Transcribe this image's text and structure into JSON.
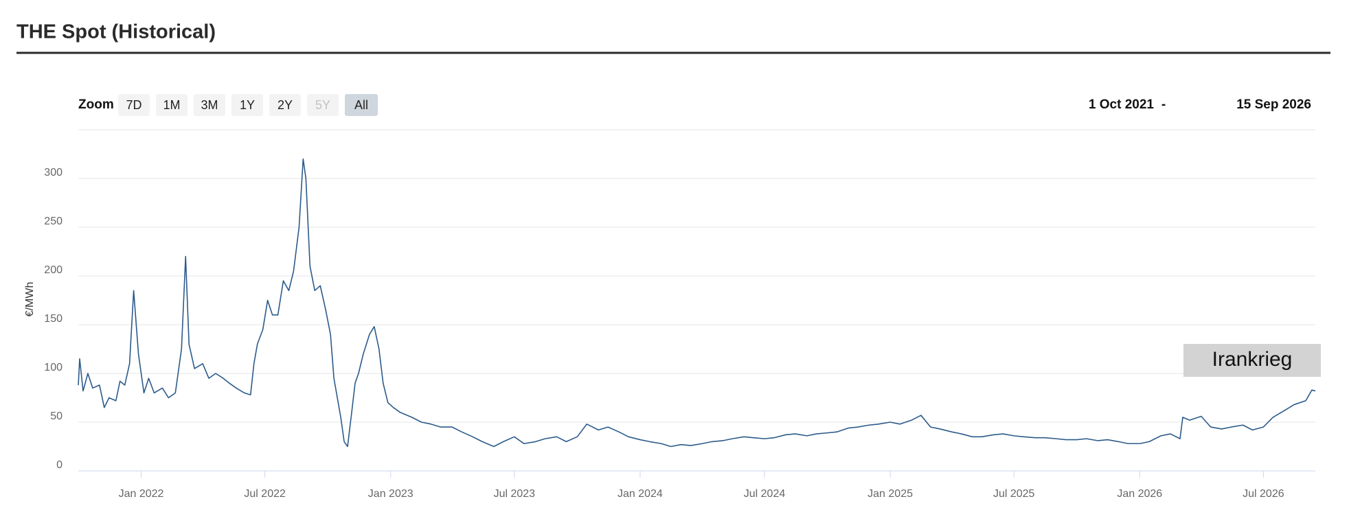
{
  "header": {
    "title": "THE Spot (Historical)"
  },
  "range_selector": {
    "zoom_label": "Zoom",
    "buttons": [
      "7D",
      "1M",
      "3M",
      "1Y",
      "2Y",
      "5Y",
      "All"
    ],
    "selected": "All",
    "disabled": [
      "5Y"
    ],
    "from": "1 Oct 2021",
    "separator": "-",
    "to": "15 Sep 2026"
  },
  "chart_data": {
    "type": "line",
    "y_label": "€/MWh",
    "annotation": "Irankrieg",
    "xlim": [
      "2021-10-01",
      "2026-09-15"
    ],
    "xticks": [
      {
        "value": "2022-01-01",
        "label": "Jan 2022"
      },
      {
        "value": "2022-07-01",
        "label": "Jul 2022"
      },
      {
        "value": "2023-01-01",
        "label": "Jan 2023"
      },
      {
        "value": "2023-07-01",
        "label": "Jul 2023"
      },
      {
        "value": "2024-01-01",
        "label": "Jan 2024"
      },
      {
        "value": "2024-07-01",
        "label": "Jul 2024"
      },
      {
        "value": "2025-01-01",
        "label": "Jan 2025"
      },
      {
        "value": "2025-07-01",
        "label": "Jul 2025"
      },
      {
        "value": "2026-01-01",
        "label": "Jan 2026"
      },
      {
        "value": "2026-07-01",
        "label": "Jul 2026"
      }
    ],
    "ylim": [
      0,
      350
    ],
    "yticks": [
      0,
      50,
      100,
      150,
      200,
      250,
      300
    ],
    "grid": true,
    "series": [
      {
        "name": "THE Spot",
        "color": "#2b5a8a",
        "x": [
          "2021-10-01",
          "2021-10-03",
          "2021-10-08",
          "2021-10-15",
          "2021-10-22",
          "2021-11-01",
          "2021-11-08",
          "2021-11-15",
          "2021-11-25",
          "2021-12-01",
          "2021-12-08",
          "2021-12-15",
          "2021-12-21",
          "2021-12-28",
          "2022-01-05",
          "2022-01-12",
          "2022-01-20",
          "2022-02-01",
          "2022-02-10",
          "2022-02-20",
          "2022-03-01",
          "2022-03-07",
          "2022-03-12",
          "2022-03-20",
          "2022-04-01",
          "2022-04-10",
          "2022-04-20",
          "2022-05-01",
          "2022-05-10",
          "2022-05-20",
          "2022-06-01",
          "2022-06-10",
          "2022-06-15",
          "2022-06-20",
          "2022-06-28",
          "2022-07-05",
          "2022-07-12",
          "2022-07-20",
          "2022-07-28",
          "2022-08-05",
          "2022-08-12",
          "2022-08-20",
          "2022-08-26",
          "2022-08-30",
          "2022-09-05",
          "2022-09-12",
          "2022-09-20",
          "2022-09-28",
          "2022-10-05",
          "2022-10-10",
          "2022-10-15",
          "2022-10-20",
          "2022-10-25",
          "2022-10-30",
          "2022-11-05",
          "2022-11-10",
          "2022-11-15",
          "2022-11-22",
          "2022-12-01",
          "2022-12-08",
          "2022-12-15",
          "2022-12-21",
          "2022-12-28",
          "2023-01-05",
          "2023-01-15",
          "2023-02-01",
          "2023-02-15",
          "2023-03-01",
          "2023-03-15",
          "2023-04-01",
          "2023-04-15",
          "2023-05-01",
          "2023-05-15",
          "2023-06-01",
          "2023-06-15",
          "2023-07-01",
          "2023-07-15",
          "2023-08-01",
          "2023-08-15",
          "2023-09-01",
          "2023-09-15",
          "2023-10-01",
          "2023-10-15",
          "2023-11-01",
          "2023-11-15",
          "2023-12-01",
          "2023-12-15",
          "2024-01-01",
          "2024-01-15",
          "2024-02-01",
          "2024-02-15",
          "2024-03-01",
          "2024-03-15",
          "2024-04-01",
          "2024-04-15",
          "2024-05-01",
          "2024-05-15",
          "2024-06-01",
          "2024-06-15",
          "2024-07-01",
          "2024-07-15",
          "2024-08-01",
          "2024-08-15",
          "2024-09-01",
          "2024-09-15",
          "2024-10-01",
          "2024-10-15",
          "2024-11-01",
          "2024-11-15",
          "2024-12-01",
          "2024-12-15",
          "2025-01-01",
          "2025-01-15",
          "2025-02-01",
          "2025-02-15",
          "2025-03-01",
          "2025-03-15",
          "2025-04-01",
          "2025-04-15",
          "2025-05-01",
          "2025-05-15",
          "2025-06-01",
          "2025-06-15",
          "2025-07-01",
          "2025-07-15",
          "2025-08-01",
          "2025-08-15",
          "2025-09-01",
          "2025-09-15",
          "2025-10-01",
          "2025-10-15",
          "2025-11-01",
          "2025-11-15",
          "2025-12-01",
          "2025-12-15",
          "2026-01-01",
          "2026-01-15",
          "2026-02-01",
          "2026-02-15",
          "2026-03-01",
          "2026-03-05",
          "2026-03-15",
          "2026-04-01",
          "2026-04-15",
          "2026-05-01",
          "2026-05-15",
          "2026-06-01",
          "2026-06-15",
          "2026-07-01",
          "2026-07-15",
          "2026-08-01",
          "2026-08-15",
          "2026-09-01",
          "2026-09-10",
          "2026-09-15"
        ],
        "values": [
          88,
          115,
          82,
          100,
          85,
          88,
          65,
          75,
          72,
          92,
          88,
          110,
          185,
          120,
          80,
          95,
          80,
          85,
          75,
          80,
          125,
          220,
          130,
          105,
          110,
          95,
          100,
          95,
          90,
          85,
          80,
          78,
          110,
          130,
          145,
          175,
          160,
          160,
          195,
          185,
          205,
          250,
          320,
          300,
          210,
          185,
          190,
          165,
          140,
          95,
          75,
          55,
          30,
          25,
          60,
          90,
          100,
          120,
          140,
          148,
          125,
          90,
          70,
          65,
          60,
          55,
          50,
          48,
          45,
          45,
          40,
          35,
          30,
          25,
          30,
          35,
          28,
          30,
          33,
          35,
          30,
          35,
          48,
          42,
          45,
          40,
          35,
          32,
          30,
          28,
          25,
          27,
          26,
          28,
          30,
          31,
          33,
          35,
          34,
          33,
          34,
          37,
          38,
          36,
          38,
          39,
          40,
          44,
          45,
          47,
          48,
          50,
          48,
          52,
          57,
          45,
          43,
          40,
          38,
          35,
          35,
          37,
          38,
          36,
          35,
          34,
          34,
          33,
          32,
          32,
          33,
          31,
          32,
          30,
          28,
          28,
          30,
          36,
          38,
          33,
          55,
          52,
          56,
          45,
          43,
          45,
          47,
          42,
          45,
          55,
          62,
          68,
          72,
          83,
          82
        ]
      }
    ]
  }
}
